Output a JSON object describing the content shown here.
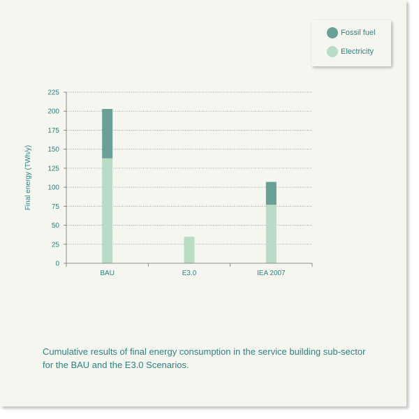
{
  "chart_data": {
    "type": "bar",
    "stacked": true,
    "categories": [
      "BAU",
      "E3.0",
      "IEA 2007"
    ],
    "series": [
      {
        "name": "Electricity",
        "color": "#b9dcc5",
        "values": [
          138,
          35,
          77
        ]
      },
      {
        "name": "Fossil fuel",
        "color": "#6a9f97",
        "values": [
          65,
          0,
          30
        ]
      }
    ],
    "ylabel": "Final energy (TWh/y)",
    "ylim": [
      0,
      225
    ],
    "yticks": [
      0,
      25,
      50,
      75,
      100,
      125,
      150,
      175,
      200,
      225
    ],
    "grid": "horizontal-dotted",
    "legend_position": "top-right"
  },
  "legend": {
    "items": [
      {
        "label": "Fossil fuel",
        "color": "#6a9f97"
      },
      {
        "label": "Electricity",
        "color": "#b9dcc5"
      }
    ]
  },
  "caption": "Cumulative results of final energy consumption in the service building sub-sector for the BAU and the E3.0 Scenarios.",
  "colors": {
    "text": "#2f7f80",
    "axis": "#6e6e6e",
    "grid": "#8a8a8a",
    "background": "#f6f6f1"
  }
}
